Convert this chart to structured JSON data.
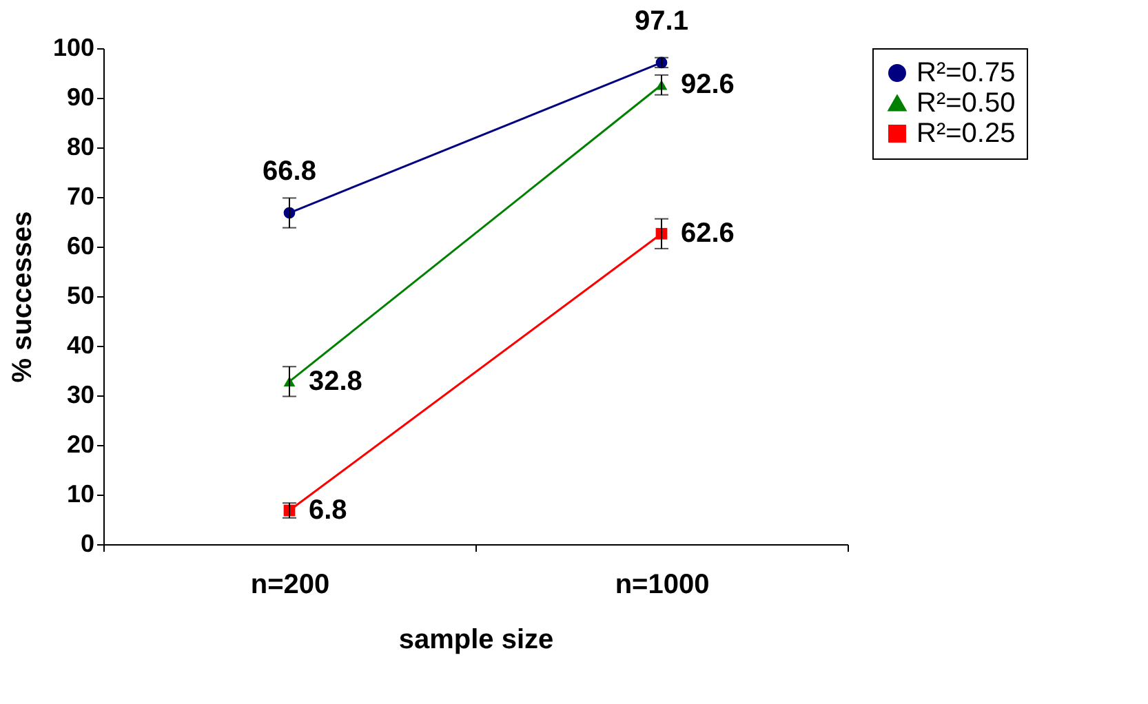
{
  "chart_data": {
    "type": "line",
    "xlabel": "sample size",
    "ylabel": "% successes",
    "categories": [
      "n=200",
      "n=1000"
    ],
    "series": [
      {
        "name": "R²=0.75",
        "color": "#000080",
        "marker": "circle",
        "values": [
          66.8,
          97.1
        ],
        "errors": [
          3,
          1
        ]
      },
      {
        "name": "R²=0.50",
        "color": "#008000",
        "marker": "triangle",
        "values": [
          32.8,
          92.6
        ],
        "errors": [
          3,
          2
        ]
      },
      {
        "name": "R²=0.25",
        "color": "#ff0000",
        "marker": "square",
        "values": [
          6.8,
          62.6
        ],
        "errors": [
          1.5,
          3
        ]
      }
    ],
    "ylim": [
      0,
      100
    ],
    "yticks": [
      0,
      10,
      20,
      30,
      40,
      50,
      60,
      70,
      80,
      90,
      100
    ],
    "grid": false,
    "legend": "right",
    "data_labels": true
  }
}
